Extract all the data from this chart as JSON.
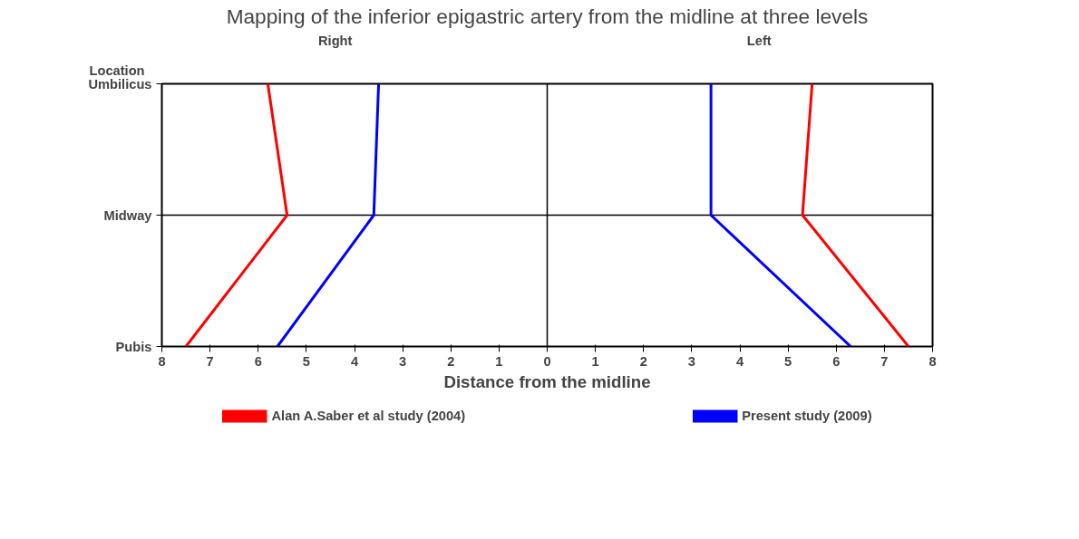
{
  "chart_data": {
    "type": "line",
    "orientation": "horizontal",
    "title": "Mapping of the inferior epigastric artery from the midline at three levels",
    "xlabel": "Distance from the midline",
    "ylabel": "Location",
    "categories": [
      "Umbilicus",
      "Midway",
      "Pubis"
    ],
    "xlim": [
      -8,
      8
    ],
    "xticks": [
      {
        "value": -8,
        "label": "8"
      },
      {
        "value": -7,
        "label": "7"
      },
      {
        "value": -6,
        "label": "6"
      },
      {
        "value": -5,
        "label": "5"
      },
      {
        "value": -4,
        "label": "4"
      },
      {
        "value": -3,
        "label": "3"
      },
      {
        "value": -2,
        "label": "2"
      },
      {
        "value": -1,
        "label": "1"
      },
      0,
      1,
      2,
      3,
      4,
      5,
      6,
      7,
      8
    ],
    "series": [
      {
        "name": "Alan A.Saber et al study (2004)",
        "color": "#ff0000",
        "values": [
          -5.8,
          -5.4,
          -7.5
        ]
      },
      {
        "color": "#ff0000",
        "values": [
          5.5,
          5.3,
          7.5
        ]
      },
      {
        "name": "Present study (2009)",
        "color": "#0000ff",
        "values": [
          -3.5,
          -3.6,
          -5.6
        ]
      },
      {
        "color": "#0000ff",
        "values": [
          3.4,
          3.4,
          6.3
        ]
      }
    ],
    "annotations": [
      "Right",
      "Left"
    ],
    "ref_lines": [
      {
        "axis": "x",
        "value": 0,
        "color": "#000000"
      }
    ],
    "grid": "y",
    "legend": "bottom"
  }
}
